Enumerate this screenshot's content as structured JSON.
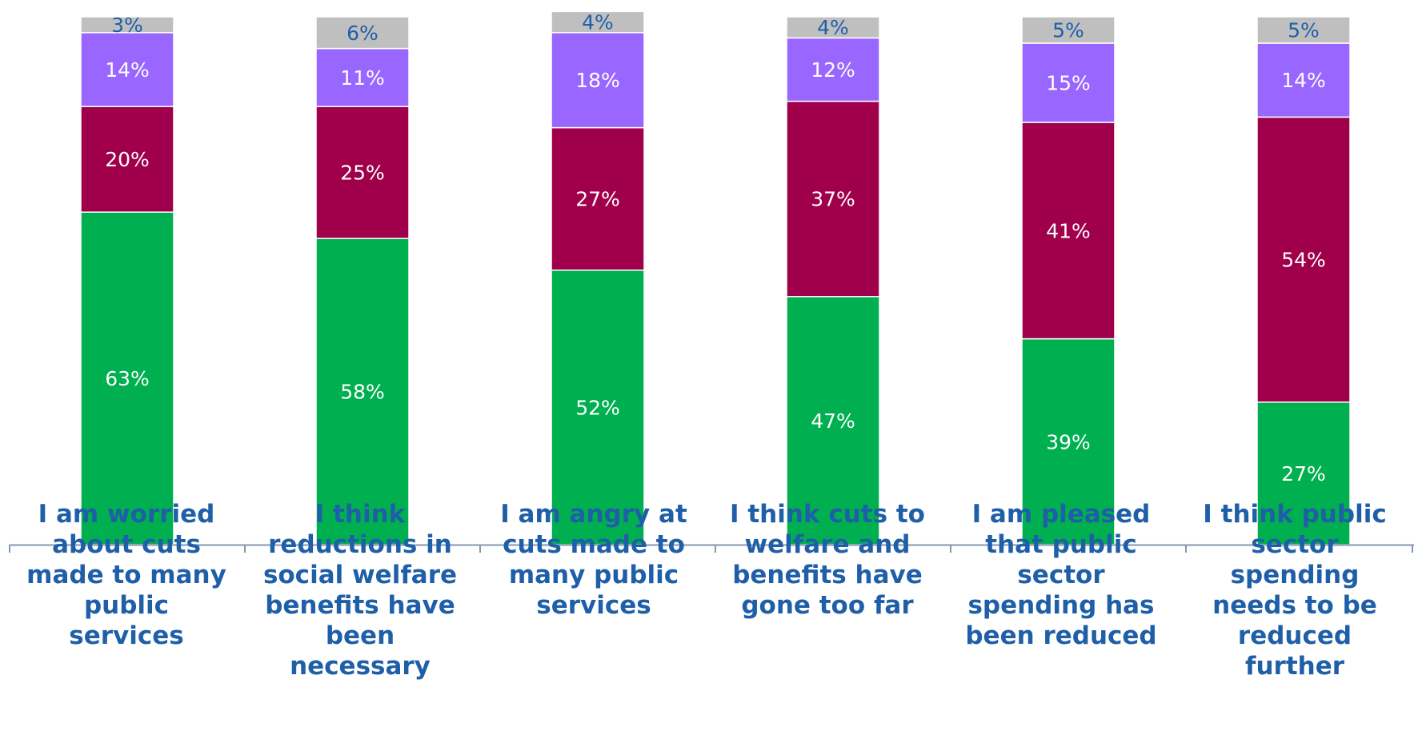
{
  "chart_data": {
    "type": "bar",
    "stacked": true,
    "orientation": "vertical",
    "categories": [
      "I am worried about cuts made to many public services",
      "I think reductions in social welfare benefits have been necessary",
      "I am angry at cuts made to many public services",
      "I think cuts to welfare and benefits have gone too far",
      "I am pleased that public sector spending has been reduced",
      "I think public sector spending needs to be reduced further"
    ],
    "series": [
      {
        "values": [
          63,
          58,
          52,
          47,
          39,
          27
        ],
        "color": "#00b050",
        "label_color": "#ffffff"
      },
      {
        "values": [
          20,
          25,
          27,
          37,
          41,
          54
        ],
        "color": "#a0004b",
        "label_color": "#ffffff"
      },
      {
        "values": [
          14,
          11,
          18,
          12,
          15,
          14
        ],
        "color": "#9966ff",
        "label_color": "#ffffff"
      },
      {
        "values": [
          3,
          6,
          4,
          4,
          5,
          5
        ],
        "color": "#bfbfbf",
        "label_color": "#1f5fa8"
      }
    ],
    "data_labels": [
      [
        "63%",
        "58%",
        "52%",
        "47%",
        "39%",
        "27%"
      ],
      [
        "20%",
        "25%",
        "27%",
        "37%",
        "41%",
        "54%"
      ],
      [
        "14%",
        "11%",
        "18%",
        "12%",
        "15%",
        "14%"
      ],
      [
        "3%",
        "6%",
        "4%",
        "4%",
        "5%",
        "5%"
      ]
    ],
    "ylim": [
      0,
      100
    ],
    "legend": "none",
    "grid": false,
    "category_label_color": "#1f5fa8",
    "axis_color": "#8497b0"
  }
}
